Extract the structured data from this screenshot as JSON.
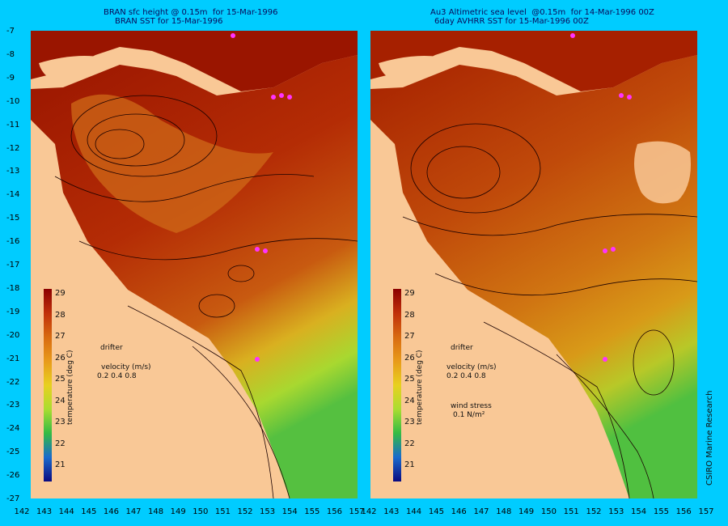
{
  "left_panel": {
    "title_line1": "BRAN sfc height @ 0.15m  for 15-Mar-1996",
    "title_line2": "BRAN SST for 15-Mar-1996"
  },
  "right_panel": {
    "title_line1": "Au3 Altimetric sea level  @0.15m  for 14-Mar-1996 00Z",
    "title_line2": "6day AVHRR SST for 15-Mar-1996 00Z"
  },
  "y_axis_labels": [
    "-7",
    "-8",
    "-9",
    "-10",
    "-11",
    "-12",
    "-13",
    "-14",
    "-15",
    "-16",
    "-17",
    "-18",
    "-19",
    "-20",
    "-21",
    "-22",
    "-23",
    "-24",
    "-25",
    "-26",
    "-27"
  ],
  "x_axis_labels_left": [
    "142",
    "143",
    "144",
    "145",
    "146",
    "147",
    "148",
    "149",
    "150",
    "151",
    "152",
    "153",
    "154",
    "155",
    "156",
    "157"
  ],
  "x_axis_labels_right": [
    "142",
    "143",
    "144",
    "145",
    "146",
    "147",
    "148",
    "149",
    "150",
    "151",
    "152",
    "153",
    "154",
    "155",
    "156",
    "157"
  ],
  "legend": {
    "title": "temperature (deg C)",
    "ticks": [
      "29",
      "28",
      "27",
      "26",
      "25",
      "24",
      "23",
      "22",
      "21"
    ],
    "colors": [
      "#8b0000",
      "#c0300a",
      "#d86a10",
      "#e89a1a",
      "#e8d020",
      "#aadd30",
      "#33bb44",
      "#1a6acc",
      "#0a0a80"
    ]
  },
  "annotations": {
    "drifter": "drifter",
    "velocity": "velocity (m/s)",
    "velocity_scale": "0.2 0.4 0.8",
    "wind_stress": "wind stress",
    "wind_stress_value": "0.1 N/m²"
  },
  "credit": "CSIRO Marine Research",
  "colors": {
    "background": "#00ccff",
    "land": "#f9c896",
    "drifter_marker": "#ff33ff"
  }
}
